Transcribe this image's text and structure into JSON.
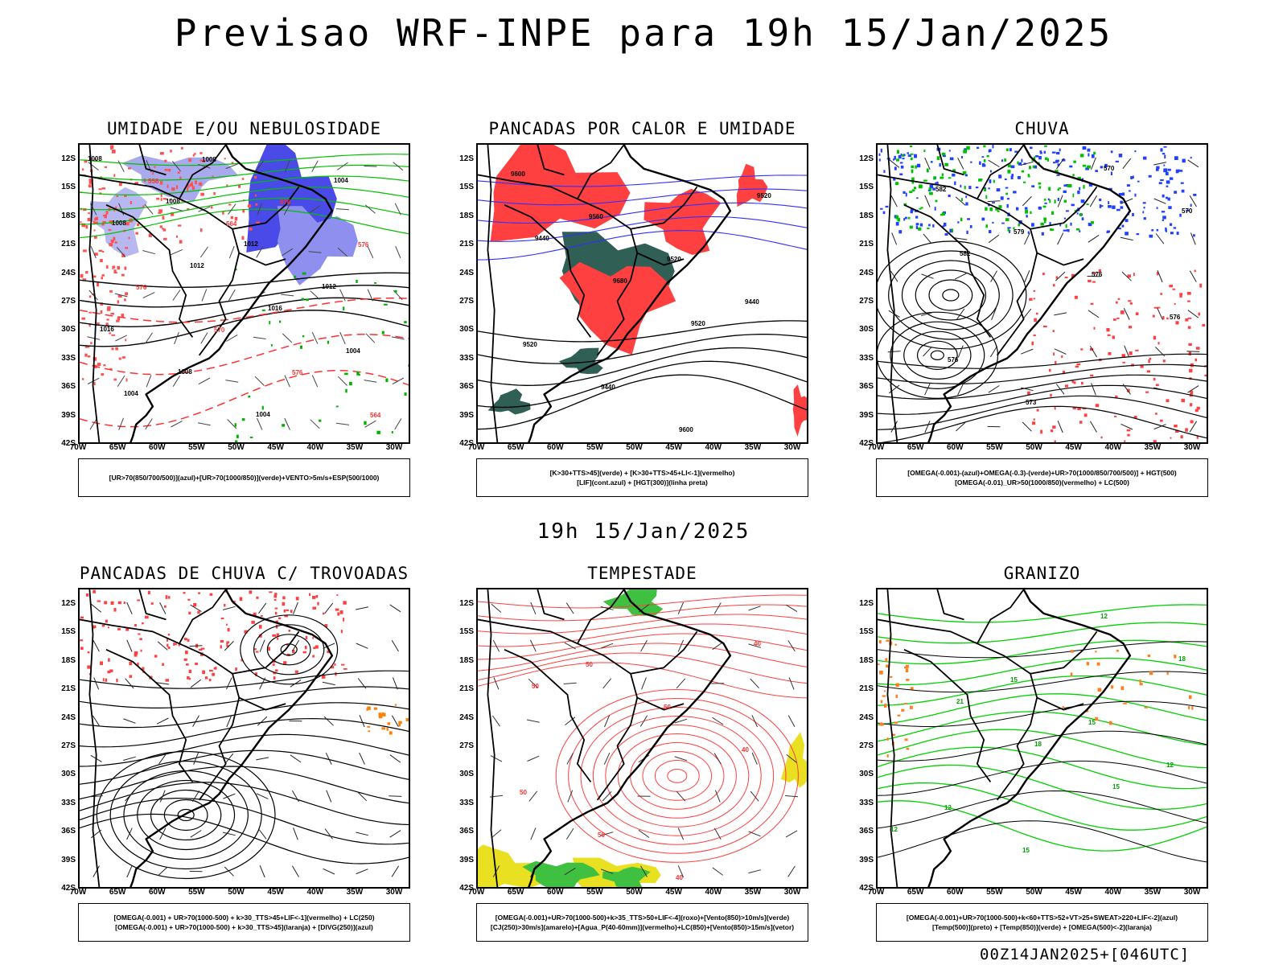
{
  "title": "Previsao WRF-INPE  para 19h 15/Jan/2025",
  "mid_timestamp": "19h 15/Jan/2025",
  "run_stamp": "00Z14JAN2025+[046UTC]",
  "axis": {
    "latitudes": [
      "12S",
      "15S",
      "18S",
      "21S",
      "24S",
      "27S",
      "30S",
      "33S",
      "36S",
      "39S",
      "42S"
    ],
    "longitudes": [
      "70W",
      "65W",
      "60W",
      "55W",
      "50W",
      "45W",
      "40W",
      "35W",
      "30W"
    ]
  },
  "panels": [
    {
      "id": "umidade",
      "title": "UMIDADE E/OU NEBULOSIDADE",
      "legend": [
        "[UR>70(850/700/500)](azul)+[UR>70(1000/850)](verde)+VENTO>5m/s+ESP(500/1000)"
      ],
      "contour_labels": [
        "1008",
        "1008",
        "1012",
        "1012",
        "1016",
        "1008",
        "1004",
        "1004",
        "1008",
        "1012",
        "1016",
        "1004",
        "1004",
        "1008",
        "576",
        "576",
        "576",
        "570",
        "576",
        "564",
        "558",
        "564"
      ]
    },
    {
      "id": "pancadas-calor",
      "title": "PANCADAS POR CALOR E UMIDADE",
      "legend": [
        "[K>30+TTS>45](verde) + [K>30+TTS>45+LI<-1](vermelho)",
        "[LIF](cont.azul) + [HGT(300)](linha preta)"
      ],
      "contour_labels": [
        "9600",
        "9560",
        "9520",
        "9440",
        "9520",
        "9440",
        "9600",
        "9520",
        "9440",
        "9680",
        "9520"
      ]
    },
    {
      "id": "chuva",
      "title": "CHUVA",
      "legend": [
        "[OMEGA(-0.001)-(azul)+OMEGA(-0.3)-(verde)+UR>70(1000/850/700/500)] + HGT(500)",
        "[OMEGA(-0.01)_UR>50(1000/850)(vermelho) + LC(500)"
      ],
      "contour_labels": [
        "582",
        "579",
        "576",
        "576",
        "576",
        "573",
        "570",
        "570",
        "582"
      ]
    },
    {
      "id": "trovoadas",
      "title": "PANCADAS DE CHUVA C/ TROVOADAS",
      "legend": [
        "[OMEGA(-0.001) + UR>70(1000-500) + k>30_TTS>45+LIF<-1](vermelho) + LC(250)",
        "[OMEGA(-0.001) + UR>70(1000-500) + k>30_TTS>45](laranja) + [DIVG(250)](azul)"
      ],
      "contour_labels": []
    },
    {
      "id": "tempestade",
      "title": "TEMPESTADE",
      "legend": [
        "[OMEGA(-0.001)+UR>70(1000-500)+k>35_TTS>50+LIF<-4](roxo)+[Vento(850)>10m/s](verde)",
        "[CJ(250)>30m/s](amarelo)+[Agua_P(40-60mm)](vermelho)+LC(850)+[Vento(850)>15m/s](vetor)"
      ],
      "contour_labels": [
        "50",
        "50",
        "40",
        "50",
        "50",
        "40",
        "40",
        "50"
      ]
    },
    {
      "id": "granizo",
      "title": "GRANIZO",
      "legend": [
        "[OMEGA(-0.001)+UR>70(1000-500)+k<60+TTS>52+VT>25+SWEAT>220+LIF<-2](azul)",
        "[Temp(500)](preto) + [Temp(850)](verde) + [OMEGA(500)<-2](laranja)"
      ],
      "contour_labels": [
        "15",
        "15",
        "12",
        "12",
        "15",
        "12",
        "18",
        "21",
        "18",
        "15",
        "12"
      ]
    }
  ]
}
